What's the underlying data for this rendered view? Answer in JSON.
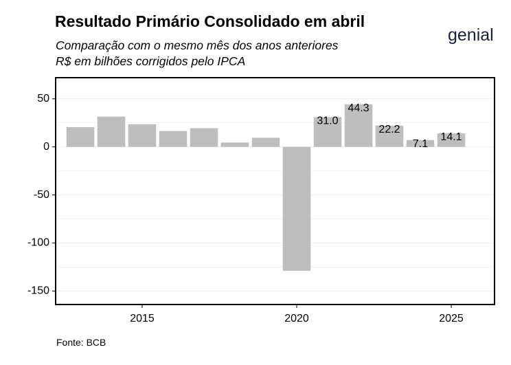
{
  "header": {
    "title": "Resultado Primário Consolidado em abril",
    "subtitle_line1": "Comparação com o mesmo mês dos anos anteriores",
    "subtitle_line2": "R$ em bilhões corrigidos pelo IPCA"
  },
  "brand": {
    "logo_text": "genial"
  },
  "footer": {
    "source": "Fonte: BCB"
  },
  "colors": {
    "bar": "#bebebe",
    "axis": "#000000",
    "grid": "#ebebeb",
    "logo": "#1c1f3a"
  },
  "chart_data": {
    "type": "bar",
    "title": "Resultado Primário Consolidado em abril",
    "xlabel": "",
    "ylabel": "",
    "x": [
      2013,
      2014,
      2015,
      2016,
      2017,
      2018,
      2019,
      2020,
      2021,
      2022,
      2023,
      2024,
      2025
    ],
    "values": [
      20.5,
      31.5,
      23.5,
      16.5,
      19.5,
      4.5,
      9.5,
      -129.0,
      31.0,
      44.3,
      22.2,
      7.1,
      14.1
    ],
    "data_labels": [
      "",
      "",
      "",
      "",
      "",
      "",
      "",
      "",
      "31.0",
      "44.3",
      "22.2",
      "7.1",
      "14.1"
    ],
    "xlim": [
      2012.2,
      2026.4
    ],
    "ylim": [
      -164,
      72
    ],
    "yticks": [
      50,
      0,
      -50,
      -100,
      -150
    ],
    "ytick_labels": [
      "50",
      "0",
      "-50",
      "-100",
      "-150"
    ],
    "xticks": [
      2015,
      2020,
      2025
    ],
    "xtick_labels": [
      "2015",
      "2020",
      "2025"
    ],
    "grid": true
  }
}
